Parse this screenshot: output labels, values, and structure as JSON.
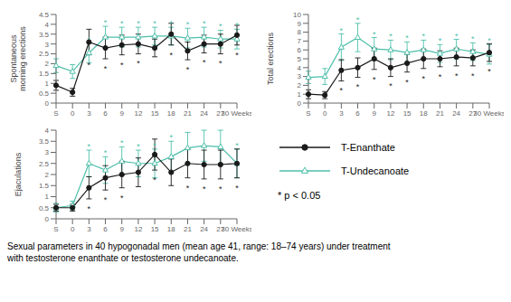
{
  "chart_data": [
    {
      "type": "line",
      "y_label": "Spontaneous\nmorning erections",
      "categories": [
        "S",
        "0",
        "3",
        "6",
        "9",
        "12",
        "15",
        "18",
        "21",
        "24",
        "27",
        "30 Weeks"
      ],
      "ylim": [
        0,
        4.5
      ],
      "yticks": [
        0,
        0.5,
        1,
        1.5,
        2,
        2.5,
        3,
        3.5,
        4,
        4.5
      ],
      "grid": false,
      "significance_mark": "*",
      "series": [
        {
          "name": "T-Enanthate",
          "color": "#1a1a1a",
          "marker": "circle",
          "values": [
            0.9,
            0.55,
            3.1,
            2.8,
            2.95,
            3.0,
            2.8,
            3.5,
            2.65,
            3.0,
            3.0,
            3.45
          ],
          "errors": [
            0.25,
            0.2,
            0.65,
            0.55,
            0.5,
            0.5,
            0.45,
            0.55,
            0.45,
            0.45,
            0.5,
            0.5
          ],
          "significant": [
            false,
            false,
            true,
            true,
            true,
            true,
            false,
            true,
            true,
            true,
            true,
            true
          ]
        },
        {
          "name": "T-Undecanoate",
          "color": "#4dbfaa",
          "marker": "triangle",
          "values": [
            1.9,
            1.6,
            2.55,
            3.35,
            3.35,
            3.35,
            3.4,
            3.4,
            3.3,
            3.35,
            3.25,
            3.25
          ],
          "errors": [
            0.35,
            0.35,
            0.5,
            0.55,
            0.5,
            0.5,
            0.45,
            0.45,
            0.5,
            0.5,
            0.45,
            0.5
          ],
          "significant": [
            false,
            false,
            true,
            true,
            true,
            true,
            true,
            true,
            true,
            true,
            true,
            true
          ]
        }
      ]
    },
    {
      "type": "line",
      "y_label": "Total erections",
      "categories": [
        "S",
        "0",
        "3",
        "6",
        "9",
        "12",
        "15",
        "18",
        "21",
        "24",
        "27",
        "30 Weeks"
      ],
      "ylim": [
        0,
        10
      ],
      "yticks": [
        0,
        1,
        2,
        3,
        4,
        5,
        6,
        7,
        8,
        9,
        10
      ],
      "grid": false,
      "significance_mark": "*",
      "series": [
        {
          "name": "T-Enanthate",
          "color": "#1a1a1a",
          "marker": "circle",
          "values": [
            1.0,
            0.9,
            3.7,
            4.0,
            5.0,
            4.0,
            4.5,
            5.0,
            5.0,
            5.2,
            5.1,
            5.7
          ],
          "errors": [
            0.5,
            0.4,
            1.2,
            1.1,
            1.2,
            1.0,
            1.0,
            1.1,
            0.9,
            1.0,
            0.9,
            1.0
          ],
          "significant": [
            false,
            false,
            true,
            true,
            true,
            true,
            true,
            true,
            true,
            true,
            true,
            true
          ]
        },
        {
          "name": "T-Undecanoate",
          "color": "#4dbfaa",
          "marker": "triangle",
          "values": [
            2.9,
            3.0,
            6.3,
            7.4,
            6.1,
            6.0,
            5.7,
            6.0,
            5.6,
            6.1,
            5.8,
            5.5
          ],
          "errors": [
            0.7,
            0.9,
            1.5,
            1.6,
            1.3,
            1.1,
            1.2,
            1.1,
            1.0,
            1.1,
            1.0,
            1.1
          ],
          "significant": [
            false,
            false,
            true,
            true,
            true,
            true,
            true,
            true,
            true,
            true,
            true,
            true
          ]
        }
      ]
    },
    {
      "type": "line",
      "y_label": "Ejaculations",
      "categories": [
        "S",
        "0",
        "3",
        "6",
        "9",
        "12",
        "15",
        "18",
        "21",
        "24",
        "27",
        "30 Weeks"
      ],
      "ylim": [
        0,
        4
      ],
      "yticks": [
        0,
        0.5,
        1,
        1.5,
        2,
        2.5,
        3,
        3.5,
        4
      ],
      "grid": false,
      "significance_mark": "*",
      "annotation": "* p < 0.05",
      "caption": "Sexual parameters in 40 hypogonadal men (mean age 41, range: 18–74 years) under treatment\nwith testosterone enanthate or testosterone undecanoate.",
      "series": [
        {
          "name": "T-Enanthate",
          "color": "#1a1a1a",
          "marker": "circle",
          "values": [
            0.5,
            0.5,
            1.4,
            1.85,
            2.0,
            2.1,
            2.9,
            2.1,
            2.5,
            2.45,
            2.45,
            2.5
          ],
          "errors": [
            0.15,
            0.15,
            0.5,
            0.55,
            0.6,
            0.65,
            0.7,
            0.6,
            0.65,
            0.65,
            0.65,
            0.65
          ],
          "significant": [
            false,
            false,
            true,
            true,
            true,
            false,
            true,
            false,
            true,
            true,
            true,
            true
          ]
        },
        {
          "name": "T-Undecanoate",
          "color": "#4dbfaa",
          "marker": "triangle",
          "values": [
            0.5,
            0.6,
            2.5,
            2.2,
            2.6,
            2.5,
            2.5,
            2.8,
            3.2,
            3.3,
            3.25,
            2.5
          ],
          "errors": [
            0.2,
            0.2,
            0.6,
            0.6,
            0.65,
            0.6,
            0.65,
            0.7,
            0.7,
            0.7,
            0.75,
            0.65
          ],
          "significant": [
            false,
            false,
            true,
            true,
            true,
            true,
            true,
            true,
            true,
            true,
            true,
            true
          ]
        }
      ]
    }
  ]
}
